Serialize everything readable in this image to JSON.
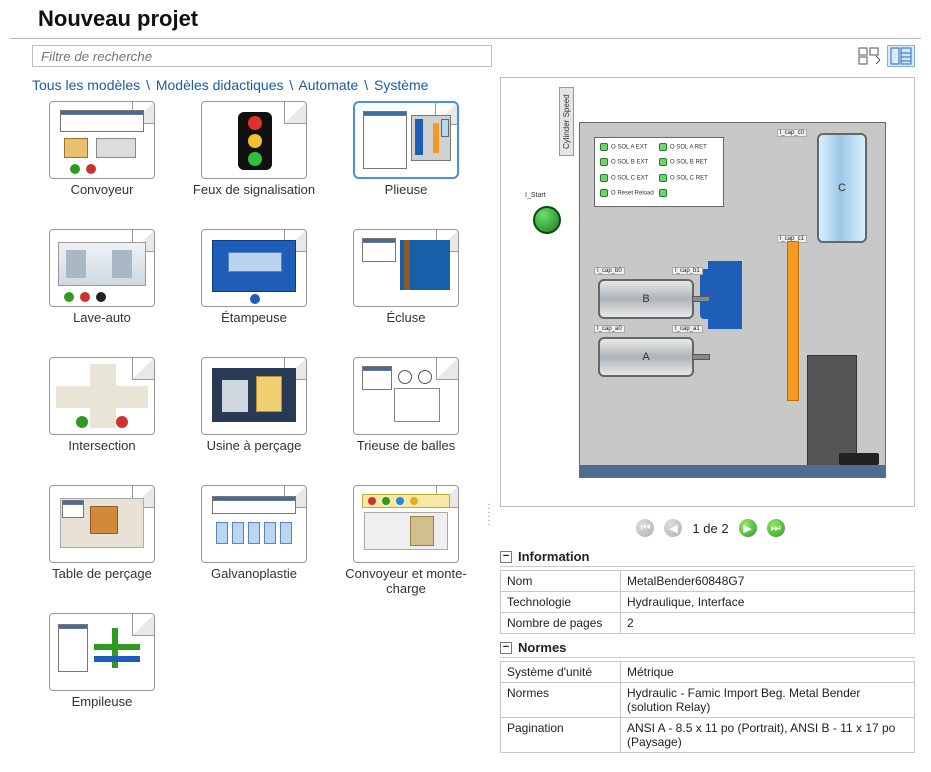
{
  "title": "Nouveau projet",
  "search": {
    "placeholder": "Filtre de recherche"
  },
  "breadcrumb": [
    "Tous les modèles",
    "Modèles didactiques",
    "Automate",
    "Système"
  ],
  "breadcrumb_sep": "\\",
  "templates": [
    {
      "label": "Convoyeur",
      "selected": false
    },
    {
      "label": "Feux de signalisation",
      "selected": false
    },
    {
      "label": "Plieuse",
      "selected": true
    },
    {
      "label": "Lave-auto",
      "selected": false
    },
    {
      "label": "Étampeuse",
      "selected": false
    },
    {
      "label": "Écluse",
      "selected": false
    },
    {
      "label": "Intersection",
      "selected": false
    },
    {
      "label": "Usine à perçage",
      "selected": false
    },
    {
      "label": "Trieuse de balles",
      "selected": false
    },
    {
      "label": "Table de perçage",
      "selected": false
    },
    {
      "label": "Galvanoplastie",
      "selected": false
    },
    {
      "label": "Convoyeur et monte-charge",
      "selected": false
    },
    {
      "label": "Empileuse",
      "selected": false
    }
  ],
  "preview": {
    "start_label": "I_Start",
    "side_label": "Cylinder Speed",
    "led_rows": [
      [
        "O SOL A EXT",
        "O SOL A RET"
      ],
      [
        "O SOL B EXT",
        "O SOL B RET"
      ],
      [
        "O SOL C EXT",
        "O SOL C RET"
      ],
      [
        "O Reset Reload",
        ""
      ]
    ],
    "cyl_c": "C",
    "cyl_b": "B",
    "cyl_a": "A",
    "cap_a0": "I_cap_a0",
    "cap_a1": "I_cap_a1",
    "cap_b0": "I_cap_b0",
    "cap_b1": "I_cap_b1",
    "cap_c0": "I_cap_c0",
    "cap_c1": "I_cap_c1"
  },
  "pager": {
    "text": "1 de 2"
  },
  "info": {
    "title": "Information",
    "rows": [
      {
        "key": "Nom",
        "val": "MetalBender60848G7"
      },
      {
        "key": "Technologie",
        "val": "Hydraulique, Interface"
      },
      {
        "key": "Nombre de pages",
        "val": "2"
      }
    ]
  },
  "normes": {
    "title": "Normes",
    "rows": [
      {
        "key": "Système d'unité",
        "val": "Métrique"
      },
      {
        "key": "Normes",
        "val": "Hydraulic  - Famic Import Beg. Metal Bender (solution Relay)"
      },
      {
        "key": "Pagination",
        "val": "ANSI A - 8.5 x 11 po (Portrait), ANSI B - 11 x 17 po (Paysage)"
      }
    ]
  },
  "colors": {
    "accent": "#4a90d9",
    "link": "#1a5ba6",
    "green": "#2f9a20",
    "orange": "#f39a1f",
    "blue": "#1e5db8",
    "gray_body": "#c8c8c8"
  }
}
